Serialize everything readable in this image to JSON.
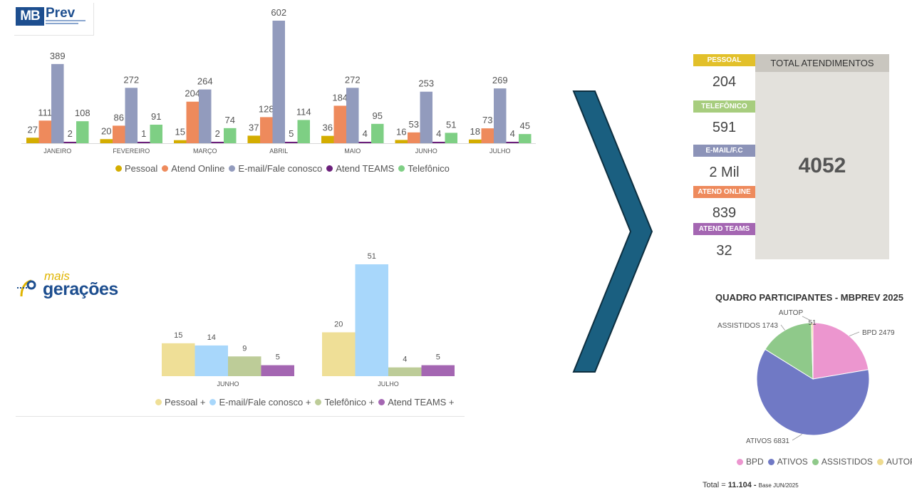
{
  "logos": {
    "mbprev": {
      "mb": "MB",
      "prev": "Prev"
    },
    "mais_geracoes": {
      "mais": "mais",
      "geracoes": "gerações"
    }
  },
  "colors": {
    "pessoal": "#d4ad00",
    "atend_online": "#ee8a5c",
    "email": "#929bbd",
    "teams": "#6b1f7b",
    "telefonico": "#7ecf84",
    "pessoal_mg": "#efdf97",
    "email_mg": "#a8d7fb",
    "telefonico_mg": "#bdcc98",
    "teams_mg": "#a466b2",
    "arrow": "#1a5f80",
    "pie_bpd": "#ec96cf",
    "pie_ativos": "#7079c5",
    "pie_assistidos": "#8fc98a",
    "pie_autop": "#eedb8f"
  },
  "chart_data": [
    {
      "type": "bar",
      "categories": [
        "JANEIRO",
        "FEVEREIRO",
        "MARÇO",
        "ABRIL",
        "MAIO",
        "JUNHO",
        "JULHO"
      ],
      "series": [
        {
          "name": "Pessoal",
          "values": [
            27,
            20,
            15,
            37,
            36,
            16,
            18
          ]
        },
        {
          "name": "Atend Online",
          "values": [
            111,
            86,
            204,
            128,
            184,
            53,
            73
          ]
        },
        {
          "name": "E-mail/Fale conosco",
          "values": [
            389,
            272,
            264,
            602,
            272,
            253,
            269
          ]
        },
        {
          "name": "Atend TEAMS",
          "values": [
            2,
            1,
            2,
            5,
            4,
            4,
            4
          ]
        },
        {
          "name": "Telefônico",
          "values": [
            108,
            91,
            74,
            114,
            95,
            51,
            45
          ]
        }
      ],
      "ylim": [
        0,
        602
      ],
      "legend": "bottom",
      "grid": false
    },
    {
      "type": "bar",
      "categories": [
        "JUNHO",
        "JULHO"
      ],
      "series": [
        {
          "name": "Pessoal +",
          "values": [
            15,
            20
          ]
        },
        {
          "name": "E-mail/Fale conosco +",
          "values": [
            14,
            51
          ]
        },
        {
          "name": "Telefônico +",
          "values": [
            9,
            4
          ]
        },
        {
          "name": "Atend TEAMS +",
          "values": [
            5,
            5
          ]
        }
      ],
      "ylim": [
        0,
        51
      ],
      "legend": "bottom",
      "grid": false
    },
    {
      "type": "pie",
      "title": "QUADRO PARTICIPANTES - MBPREV 2025",
      "labels": [
        "BPD",
        "ATIVOS",
        "ASSISTIDOS",
        "AUTOP"
      ],
      "values": [
        2479,
        6831,
        1743,
        51
      ],
      "slice_labels": [
        "BPD 2479",
        "ATIVOS 6831",
        "ASSISTIDOS 1743",
        "51"
      ],
      "autop_label": "AUTOP",
      "legend": "bottom"
    }
  ],
  "summary": {
    "items": [
      {
        "label": "PESSOAL",
        "value": "204",
        "color": "#e2c02a"
      },
      {
        "label": "TELEFÔNICO",
        "value": "591",
        "color": "#a7cd7e"
      },
      {
        "label": "E-MAIL/F.C",
        "value": "2 Mil",
        "color": "#8c93b8"
      },
      {
        "label": "ATEND ONLINE",
        "value": "839",
        "color": "#ee8a5c"
      },
      {
        "label": "ATEND TEAMS",
        "value": "32",
        "color": "#a466b2"
      }
    ],
    "total_label": "TOTAL ATENDIMENTOS",
    "total_value": "4052"
  },
  "footer": {
    "prefix": "Total = ",
    "total": "11.104",
    "dash": " - ",
    "base": "Base JUN/2025"
  }
}
